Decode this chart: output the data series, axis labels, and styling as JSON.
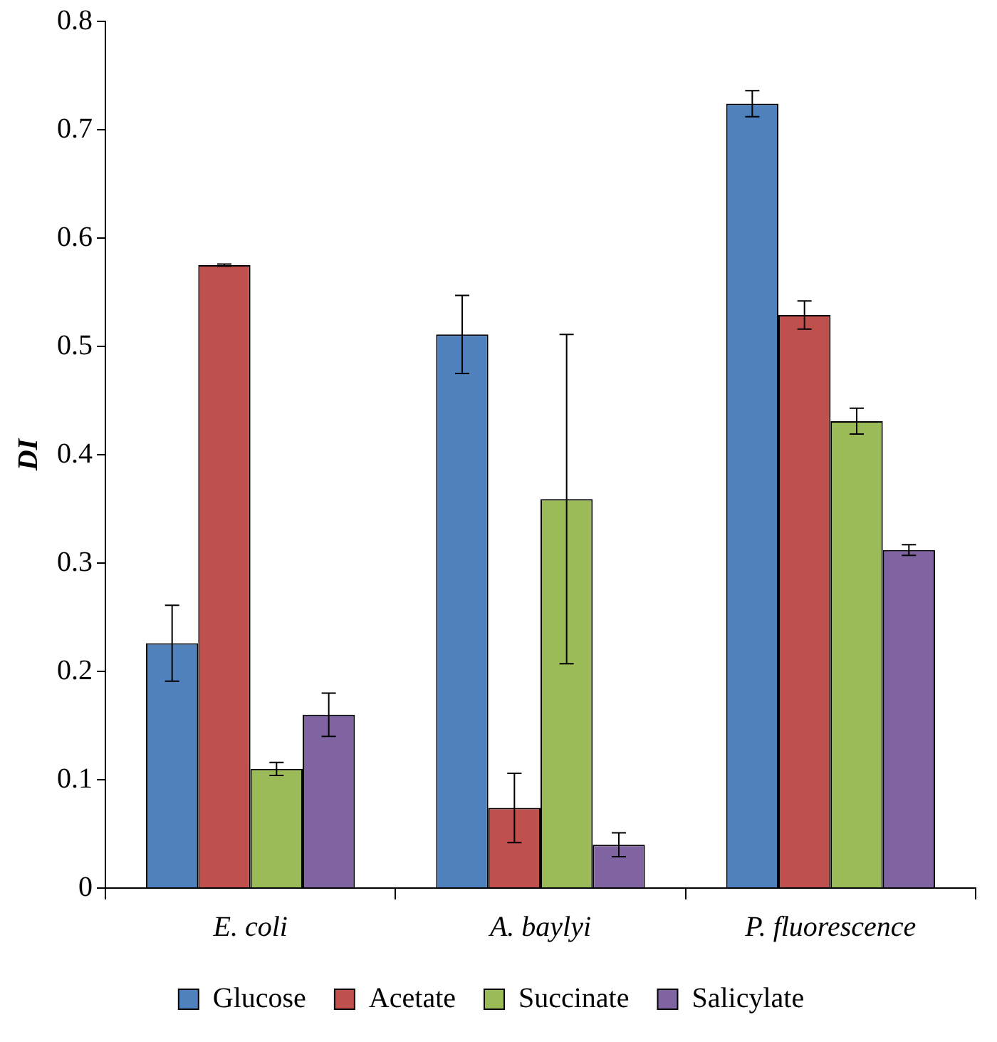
{
  "chart_data": {
    "type": "bar",
    "ylabel": "DI",
    "categories": [
      "E. coli",
      "A. baylyi",
      "P. fluorescence"
    ],
    "series": [
      {
        "name": "Glucose",
        "color": "#4f81bd",
        "values": [
          0.226,
          0.511,
          0.724
        ],
        "errors": [
          0.035,
          0.036,
          0.012
        ]
      },
      {
        "name": "Acetate",
        "color": "#c0504d",
        "values": [
          0.575,
          0.074,
          0.529
        ],
        "errors": [
          0.001,
          0.032,
          0.013
        ]
      },
      {
        "name": "Succinate",
        "color": "#9bbb59",
        "values": [
          0.11,
          0.359,
          0.431
        ],
        "errors": [
          0.006,
          0.152,
          0.012
        ]
      },
      {
        "name": "Salicylate",
        "color": "#8064a2",
        "values": [
          0.16,
          0.04,
          0.312
        ],
        "errors": [
          0.02,
          0.011,
          0.005
        ]
      }
    ],
    "ylim": [
      0,
      0.8
    ],
    "yticks": [
      0,
      0.1,
      0.2,
      0.3,
      0.4,
      0.5,
      0.6,
      0.7,
      0.8
    ],
    "grid": false,
    "legend": "bottom"
  }
}
